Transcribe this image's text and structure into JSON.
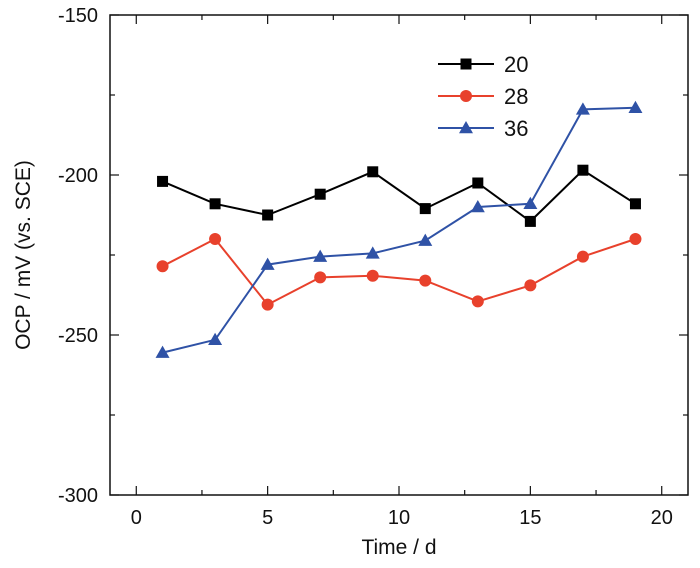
{
  "chart_data": {
    "type": "line",
    "title": "",
    "xlabel": "Time / d",
    "ylabel": "OCP / mV (vs. SCE)",
    "xlim": [
      -1,
      21
    ],
    "ylim": [
      -300,
      -150
    ],
    "xticks": [
      0,
      5,
      10,
      15,
      20
    ],
    "yticks": [
      -300,
      -250,
      -200,
      -150
    ],
    "grid": false,
    "legend_position": "top-right",
    "x": [
      1,
      3,
      5,
      7,
      9,
      11,
      13,
      15,
      17,
      19
    ],
    "series": [
      {
        "name": "20",
        "color": "#000000",
        "marker": "square",
        "values": [
          -202,
          -209,
          -212.5,
          -206,
          -199,
          -210.5,
          -202.5,
          -214.5,
          -198.5,
          -209
        ]
      },
      {
        "name": "28",
        "color": "#e8412c",
        "marker": "circle",
        "values": [
          -228.5,
          -220,
          -240.5,
          -232,
          -231.5,
          -233,
          -239.5,
          -234.5,
          -225.5,
          -220
        ]
      },
      {
        "name": "36",
        "color": "#2f52a6",
        "marker": "triangle",
        "values": [
          -255.5,
          -251.5,
          -228,
          -225.5,
          -224.5,
          -220.5,
          -210,
          -209,
          -179.5,
          -179
        ]
      }
    ]
  }
}
